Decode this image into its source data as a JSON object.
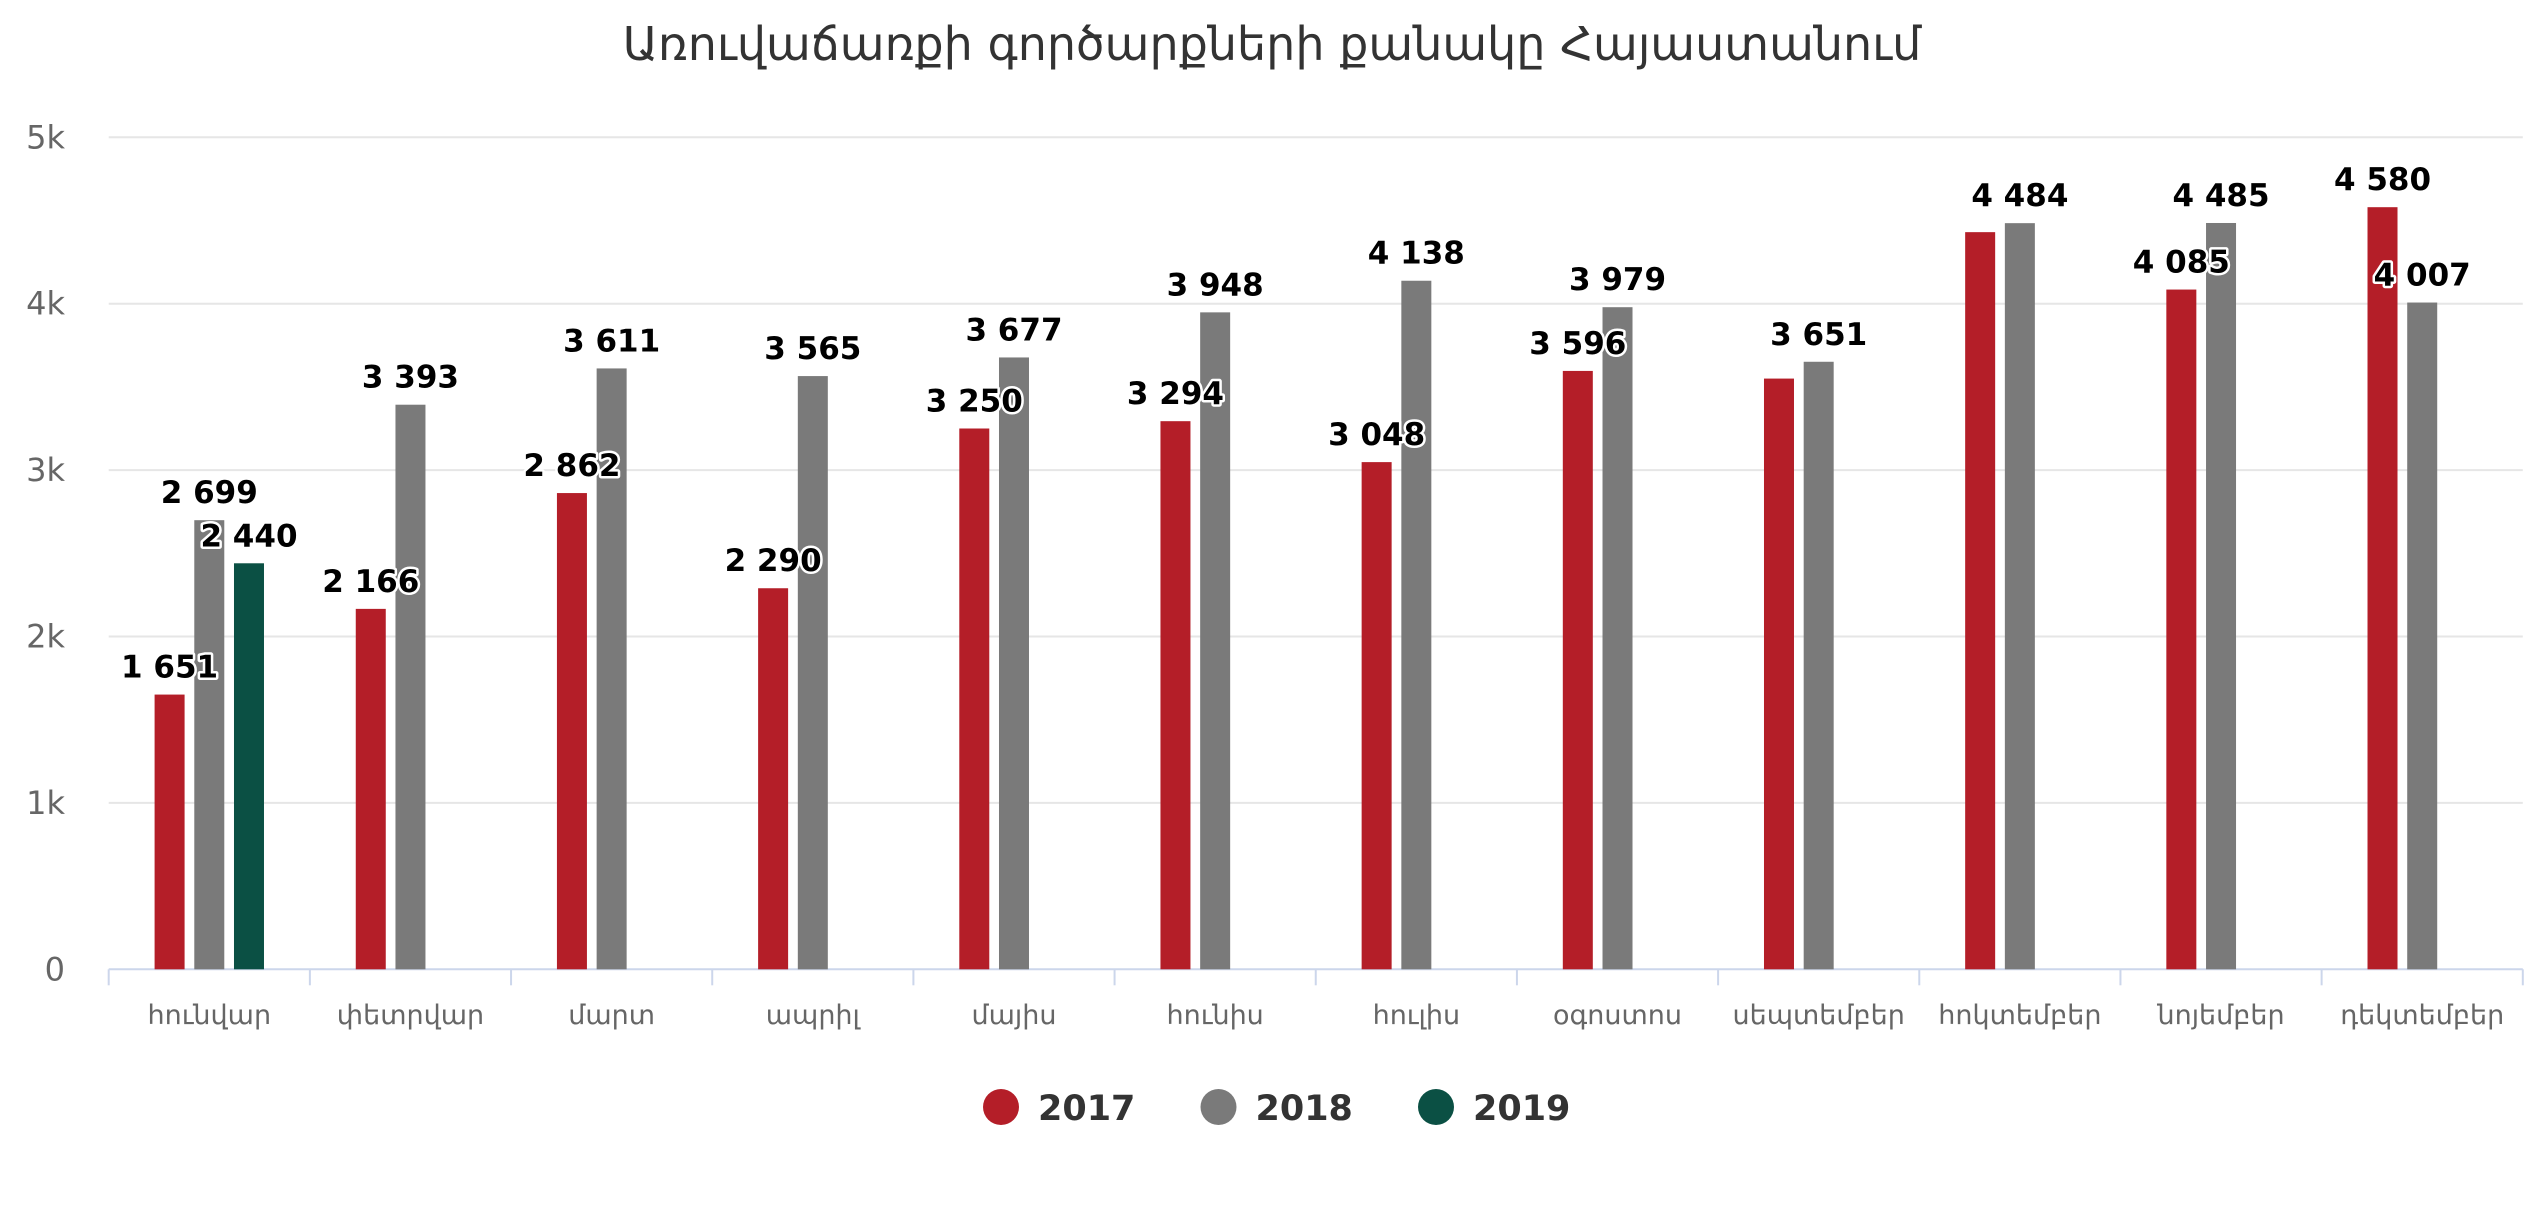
{
  "chart_data": {
    "type": "bar",
    "title": "Առուվաճառքի գործարքների քանակը Հայաստանում",
    "categories": [
      "հունվար",
      "փետրվար",
      "մարտ",
      "ապրիլ",
      "մայիս",
      "հունիս",
      "հուլիս",
      "օգոստոս",
      "սեպտեմբեր",
      "հոկտեմբեր",
      "նոյեմբեր",
      "դեկտեմբեր"
    ],
    "series": [
      {
        "name": "2017",
        "color": "#b41e28",
        "values": [
          1651,
          2166,
          2862,
          2290,
          3250,
          3294,
          3048,
          3596,
          3550,
          4430,
          4085,
          4580
        ],
        "labels": [
          "1 651",
          "2 166",
          "2 862",
          "2 290",
          "3 250",
          "3 294",
          "3 048",
          "3 596",
          null,
          null,
          "4 085",
          "4 580"
        ]
      },
      {
        "name": "2018",
        "color": "#7a7a7a",
        "values": [
          2699,
          3393,
          3611,
          3565,
          3677,
          3948,
          4138,
          3979,
          3651,
          4484,
          4485,
          4007
        ],
        "labels": [
          "2 699",
          "3 393",
          "3 611",
          "3 565",
          "3 677",
          "3 948",
          "4 138",
          "3 979",
          "3 651",
          "4 484",
          "4 485",
          "4 007"
        ]
      },
      {
        "name": "2019",
        "color": "#0b5044",
        "values": [
          2440,
          null,
          null,
          null,
          null,
          null,
          null,
          null,
          null,
          null,
          null,
          null
        ],
        "labels": [
          "2 440",
          null,
          null,
          null,
          null,
          null,
          null,
          null,
          null,
          null,
          null,
          null
        ]
      }
    ],
    "ylim": [
      0,
      5000
    ],
    "yticks": [
      0,
      1000,
      2000,
      3000,
      4000,
      5000
    ],
    "ytick_labels": [
      "0",
      "1k",
      "2k",
      "3k",
      "4k",
      "5k"
    ],
    "grid": true,
    "legend": "bottom-center"
  }
}
